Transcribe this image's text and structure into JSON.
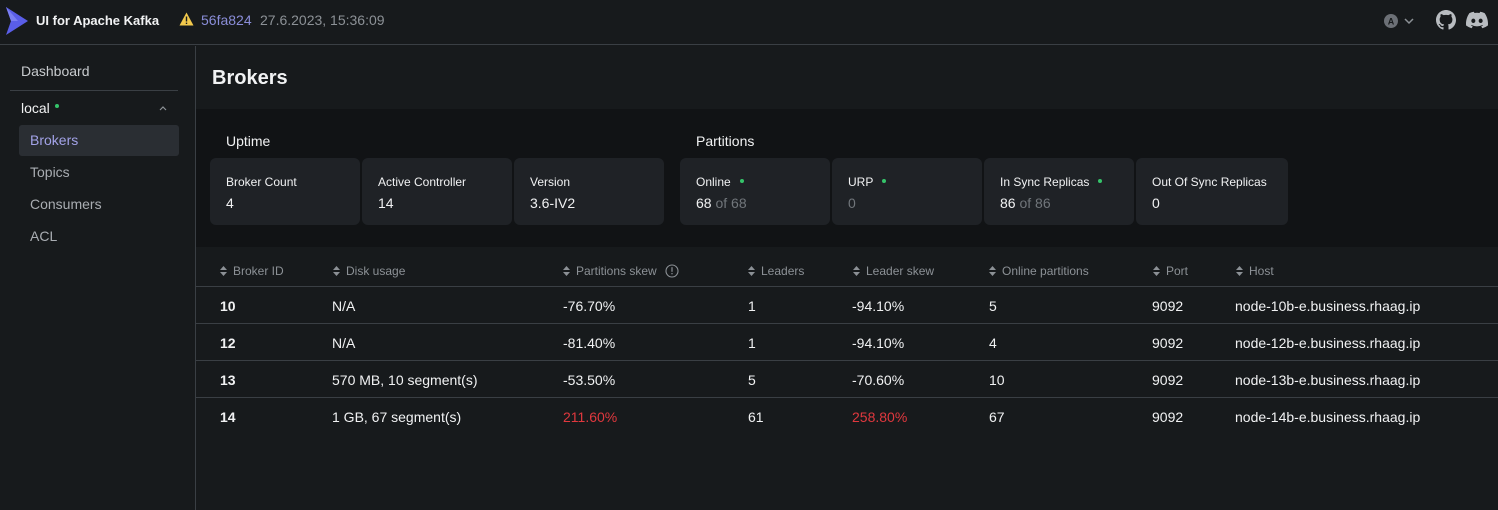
{
  "header": {
    "app_title": "UI for Apache Kafka",
    "commit": "56fa824",
    "build_date": "27.6.2023, 15:36:09",
    "user_initial": "A"
  },
  "sidebar": {
    "dashboard": "Dashboard",
    "cluster": "local",
    "items": [
      {
        "label": "Brokers",
        "active": true
      },
      {
        "label": "Topics",
        "active": false
      },
      {
        "label": "Consumers",
        "active": false
      },
      {
        "label": "ACL",
        "active": false
      }
    ]
  },
  "page": {
    "title": "Brokers"
  },
  "metrics": {
    "uptime": {
      "title": "Uptime",
      "cards": [
        {
          "label": "Broker Count",
          "value": "4"
        },
        {
          "label": "Active Controller",
          "value": "14"
        },
        {
          "label": "Version",
          "value": "3.6-IV2"
        }
      ]
    },
    "partitions": {
      "title": "Partitions",
      "cards": [
        {
          "label": "Online",
          "value": "68",
          "suffix": " of 68",
          "status": "ok"
        },
        {
          "label": "URP",
          "value": "",
          "suffix": "0",
          "status": "ok"
        },
        {
          "label": "In Sync Replicas",
          "value": "86",
          "suffix": " of 86",
          "status": "ok"
        },
        {
          "label": "Out Of Sync Replicas",
          "value": "0",
          "suffix": "",
          "status": ""
        }
      ]
    }
  },
  "table": {
    "columns": [
      "Broker ID",
      "Disk usage",
      "Partitions skew",
      "Leaders",
      "Leader skew",
      "Online partitions",
      "Port",
      "Host"
    ],
    "rows": [
      {
        "id": "10",
        "disk": "N/A",
        "pskew": "-76.70%",
        "leaders": "1",
        "lskew": "-94.10%",
        "online": "5",
        "port": "9092",
        "host": "node-10b-e.business.rhaag.ip",
        "pskew_alert": false,
        "lskew_alert": false
      },
      {
        "id": "12",
        "disk": "N/A",
        "pskew": "-81.40%",
        "leaders": "1",
        "lskew": "-94.10%",
        "online": "4",
        "port": "9092",
        "host": "node-12b-e.business.rhaag.ip",
        "pskew_alert": false,
        "lskew_alert": false
      },
      {
        "id": "13",
        "disk": "570 MB, 10 segment(s)",
        "pskew": "-53.50%",
        "leaders": "5",
        "lskew": "-70.60%",
        "online": "10",
        "port": "9092",
        "host": "node-13b-e.business.rhaag.ip",
        "pskew_alert": false,
        "lskew_alert": false
      },
      {
        "id": "14",
        "disk": "1 GB, 67 segment(s)",
        "pskew": "211.60%",
        "leaders": "61",
        "lskew": "258.80%",
        "online": "67",
        "port": "9092",
        "host": "node-14b-e.business.rhaag.ip",
        "pskew_alert": true,
        "lskew_alert": true
      }
    ]
  },
  "colors": {
    "accent": "#a3a3e8",
    "ok_dot": "#35c46a",
    "alert": "#e0383e",
    "warning": "#f2c94c"
  }
}
